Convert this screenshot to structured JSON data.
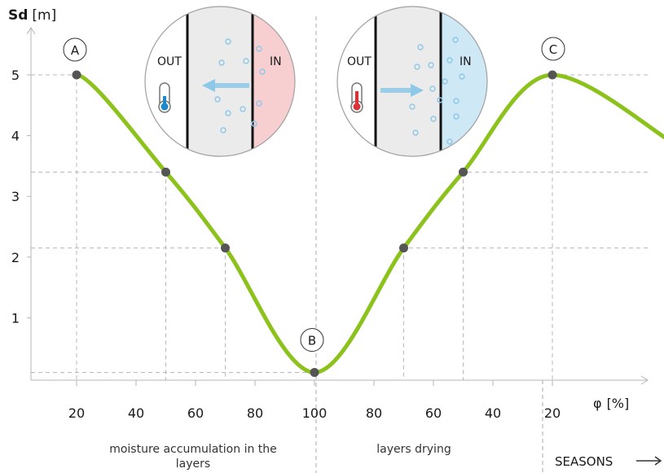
{
  "chart_data": {
    "type": "line",
    "ylabel": "Sd",
    "yunit": "[m]",
    "xlabel": "φ",
    "xunit": "[%]",
    "y_ticks": [
      1,
      2,
      3,
      4,
      5
    ],
    "x_ticks": [
      "20",
      "40",
      "60",
      "80",
      "100",
      "80",
      "60",
      "40",
      "20"
    ],
    "x_tick_positions": [
      20,
      40,
      60,
      80,
      100,
      120,
      140,
      160,
      180
    ],
    "xlim": [
      4,
      220
    ],
    "ylim": [
      0,
      5.7
    ],
    "line_color": "#8cc21c",
    "marker_color": "#555555",
    "series": [
      {
        "values": [
          {
            "x": 20,
            "y": 5.0
          },
          {
            "x": 50,
            "y": 3.4
          },
          {
            "x": 70,
            "y": 2.15
          },
          {
            "x": 100,
            "y": 0.1
          },
          {
            "x": 130,
            "y": 2.15
          },
          {
            "x": 150,
            "y": 3.4
          },
          {
            "x": 180,
            "y": 5.0
          },
          {
            "x": 220,
            "y": 3.9
          }
        ],
        "markers": [
          20,
          50,
          70,
          100,
          130,
          150,
          180
        ]
      }
    ],
    "points": [
      {
        "label": "A",
        "x": 20,
        "y": 5.0
      },
      {
        "label": "B",
        "x": 100,
        "y": 0.1
      },
      {
        "label": "C",
        "x": 180,
        "y": 5.0
      }
    ],
    "annotations": {
      "accumulation": "moisture accumulation in the layers",
      "drying": "layers drying",
      "seasons": "SEASONS"
    },
    "insets": [
      {
        "out_label": "OUT",
        "in_label": "IN",
        "in_color": "#f8cfd0",
        "thermometer": "cold",
        "arrow": "left"
      },
      {
        "out_label": "OUT",
        "in_label": "IN",
        "in_color": "#cfe8f5",
        "thermometer": "warm",
        "arrow": "right"
      }
    ],
    "grid": "dashed guide lines"
  }
}
